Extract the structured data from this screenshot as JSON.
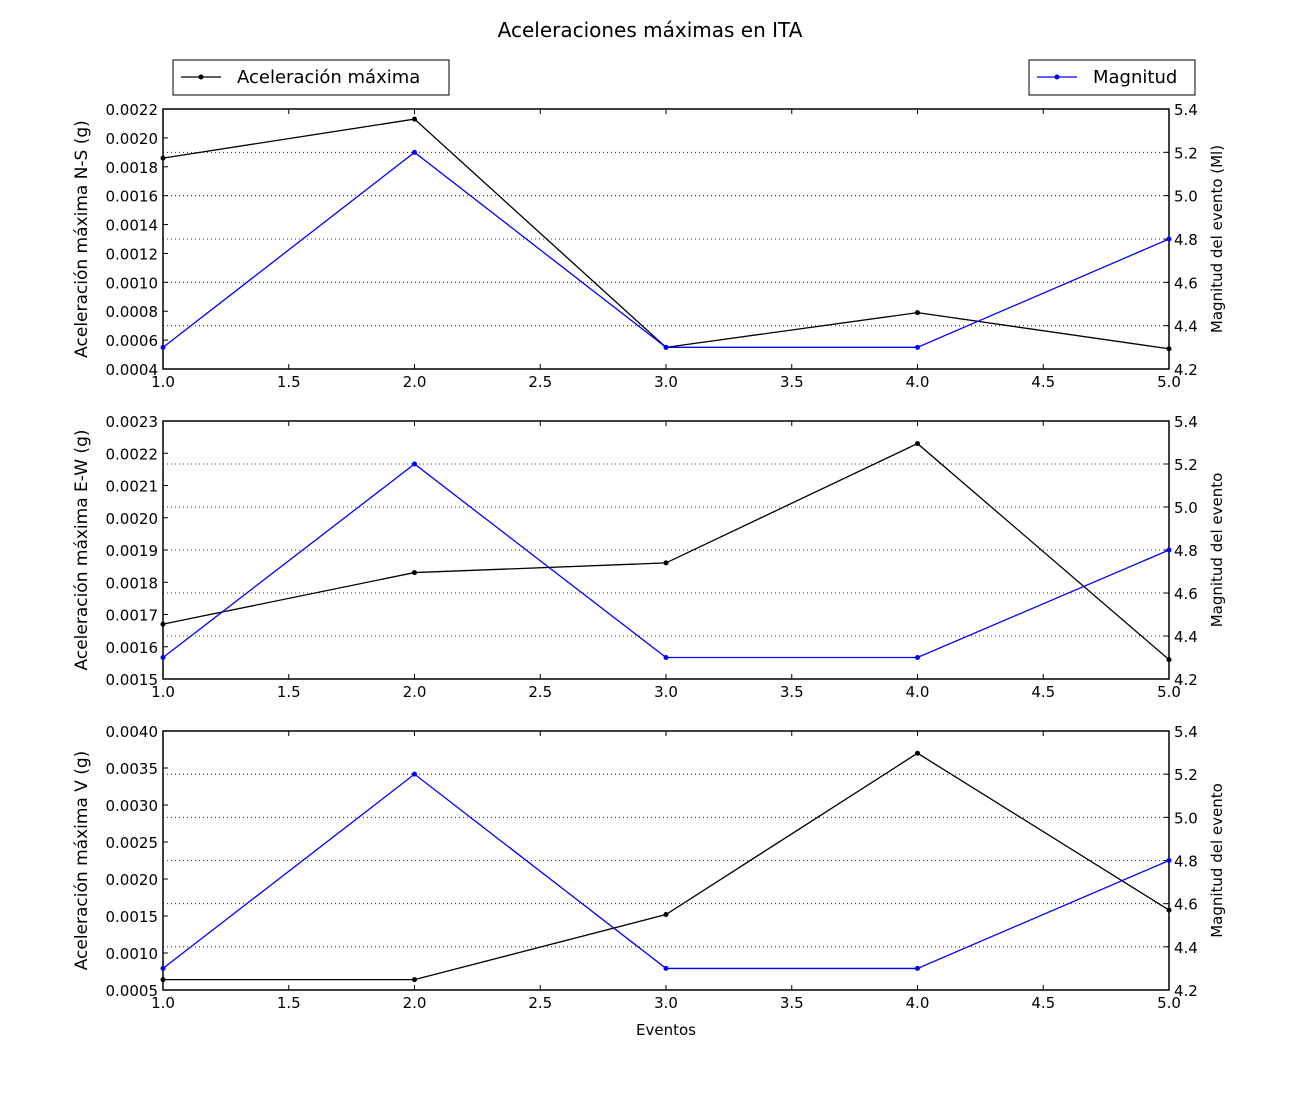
{
  "chart_data": {
    "type": "line",
    "title": "Aceleraciones máximas en ITA",
    "xlabel": "Eventos",
    "legend": {
      "left": {
        "label": "Aceleración máxima",
        "color": "#000000",
        "placement": "top-left"
      },
      "right": {
        "label": "Magnitud",
        "color": "#0000ff",
        "placement": "top-right"
      }
    },
    "x": [
      1,
      2,
      3,
      4,
      5
    ],
    "xlim": [
      1.0,
      5.0
    ],
    "xticks": [
      "1.0",
      "1.5",
      "2.0",
      "2.5",
      "3.0",
      "3.5",
      "4.0",
      "4.5",
      "5.0"
    ],
    "panels": [
      {
        "ylabel": "Aceleración máxima N-S (g)",
        "ylabel_right": "Magnitud del evento (Ml)",
        "ylim": [
          0.0004,
          0.0022
        ],
        "yticks": [
          "0.0004",
          "0.0006",
          "0.0008",
          "0.0010",
          "0.0012",
          "0.0014",
          "0.0016",
          "0.0018",
          "0.0020",
          "0.0022"
        ],
        "ylim_right": [
          4.2,
          5.4
        ],
        "yticks_right": [
          "4.2",
          "4.4",
          "4.6",
          "4.8",
          "5.0",
          "5.2",
          "5.4"
        ],
        "grid": "right-axis dotted horizontal",
        "series": [
          {
            "name": "Aceleración máxima",
            "axis": "left",
            "color": "#000000",
            "values": [
              0.00186,
              0.00213,
              0.00055,
              0.00079,
              0.00054
            ]
          },
          {
            "name": "Magnitud",
            "axis": "right",
            "color": "#0000ff",
            "values": [
              4.3,
              5.2,
              4.3,
              4.3,
              4.8
            ]
          }
        ]
      },
      {
        "ylabel": "Aceleración máxima E-W (g)",
        "ylabel_right": "Magnitud del evento",
        "ylim": [
          0.0015,
          0.0023
        ],
        "yticks": [
          "0.0015",
          "0.0016",
          "0.0017",
          "0.0018",
          "0.0019",
          "0.0020",
          "0.0021",
          "0.0022",
          "0.0023"
        ],
        "ylim_right": [
          4.2,
          5.4
        ],
        "yticks_right": [
          "4.2",
          "4.4",
          "4.6",
          "4.8",
          "5.0",
          "5.2",
          "5.4"
        ],
        "grid": "right-axis dotted horizontal",
        "series": [
          {
            "name": "Aceleración máxima",
            "axis": "left",
            "color": "#000000",
            "values": [
              0.00167,
              0.00183,
              0.00186,
              0.00223,
              0.00156
            ]
          },
          {
            "name": "Magnitud",
            "axis": "right",
            "color": "#0000ff",
            "values": [
              4.3,
              5.2,
              4.3,
              4.3,
              4.8
            ]
          }
        ]
      },
      {
        "ylabel": "Aceleración máxima V (g)",
        "ylabel_right": "Magnitud del evento",
        "ylim": [
          0.0005,
          0.004
        ],
        "yticks": [
          "0.0005",
          "0.0010",
          "0.0015",
          "0.0020",
          "0.0025",
          "0.0030",
          "0.0035",
          "0.0040"
        ],
        "ylim_right": [
          4.2,
          5.4
        ],
        "yticks_right": [
          "4.2",
          "4.4",
          "4.6",
          "4.8",
          "5.0",
          "5.2",
          "5.4"
        ],
        "grid": "right-axis dotted horizontal",
        "series": [
          {
            "name": "Aceleración máxima",
            "axis": "left",
            "color": "#000000",
            "values": [
              0.00064,
              0.00064,
              0.00152,
              0.0037,
              0.00158
            ]
          },
          {
            "name": "Magnitud",
            "axis": "right",
            "color": "#0000ff",
            "values": [
              4.3,
              5.2,
              4.3,
              4.3,
              4.8
            ]
          }
        ]
      }
    ]
  }
}
